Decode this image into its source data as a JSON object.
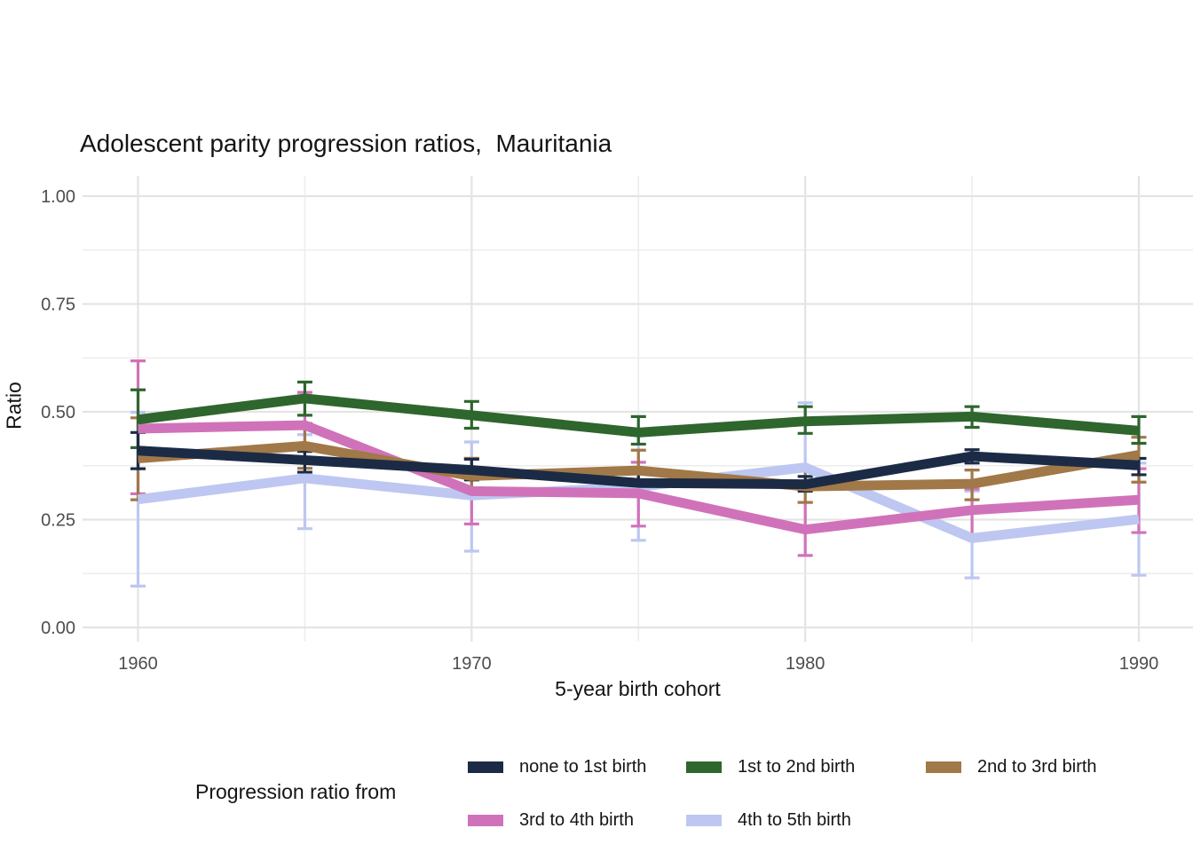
{
  "chart_data": {
    "type": "line",
    "title": "Adolescent parity progression ratios,  Mauritania",
    "xlabel": "5-year birth cohort",
    "ylabel": "Ratio",
    "legend_title": "Progression ratio from",
    "legend_position": "bottom",
    "grid": true,
    "x": [
      1960,
      1965,
      1970,
      1975,
      1980,
      1985,
      1990
    ],
    "x_labeled_ticks": [
      1960,
      1970,
      1980,
      1990
    ],
    "x_tick_labels": [
      "1960",
      "1970",
      "1980",
      "1990"
    ],
    "x_minor_ticks": [
      1965,
      1975,
      1985
    ],
    "ylim": [
      0,
      1
    ],
    "y_ticks": [
      0,
      0.25,
      0.5,
      0.75,
      1
    ],
    "y_tick_labels": [
      "0.00",
      "0.25",
      "0.50",
      "0.75",
      "1.00"
    ],
    "y_minor_ticks": [
      0.125,
      0.375,
      0.625,
      0.875
    ],
    "series": [
      {
        "name": "none to 1st birth",
        "color": "#1c2b45",
        "values": [
          0.41,
          0.388,
          0.365,
          0.335,
          0.332,
          0.397,
          0.376
        ],
        "lower": [
          0.368,
          0.36,
          0.342,
          0.312,
          0.316,
          0.381,
          0.354
        ],
        "upper": [
          0.452,
          0.408,
          0.39,
          0.36,
          0.35,
          0.412,
          0.392
        ]
      },
      {
        "name": "1st to 2nd birth",
        "color": "#2e662e",
        "values": [
          0.482,
          0.531,
          0.492,
          0.452,
          0.478,
          0.489,
          0.456
        ],
        "lower": [
          0.417,
          0.492,
          0.462,
          0.425,
          0.45,
          0.464,
          0.427
        ],
        "upper": [
          0.551,
          0.569,
          0.524,
          0.489,
          0.512,
          0.512,
          0.489
        ]
      },
      {
        "name": "2nd to 3rd birth",
        "color": "#a17848",
        "values": [
          0.392,
          0.421,
          0.351,
          0.364,
          0.327,
          0.333,
          0.4
        ],
        "lower": [
          0.296,
          0.369,
          0.306,
          0.317,
          0.29,
          0.296,
          0.337
        ],
        "upper": [
          0.486,
          0.473,
          0.392,
          0.411,
          0.368,
          0.365,
          0.441
        ]
      },
      {
        "name": "3rd to 4th birth",
        "color": "#d072ba",
        "values": [
          0.461,
          0.469,
          0.316,
          0.311,
          0.227,
          0.272,
          0.296
        ],
        "lower": [
          0.31,
          0.387,
          0.24,
          0.235,
          0.167,
          0.212,
          0.22
        ],
        "upper": [
          0.618,
          0.545,
          0.392,
          0.383,
          0.29,
          0.321,
          0.368
        ]
      },
      {
        "name": "4th to 5th birth",
        "color": "#bdc7f1",
        "values": [
          0.297,
          0.346,
          0.306,
          0.326,
          0.371,
          0.207,
          0.251
        ],
        "lower": [
          0.096,
          0.229,
          0.177,
          0.202,
          0.223,
          0.115,
          0.121
        ],
        "upper": [
          0.499,
          0.447,
          0.43,
          0.457,
          0.521,
          0.316,
          0.381
        ]
      }
    ],
    "colors": {
      "grid_major": "#e4e4e4",
      "grid_minor": "#ededed",
      "tick_label": "#4d4d4d",
      "text": "#141414",
      "background": "#ffffff"
    }
  }
}
